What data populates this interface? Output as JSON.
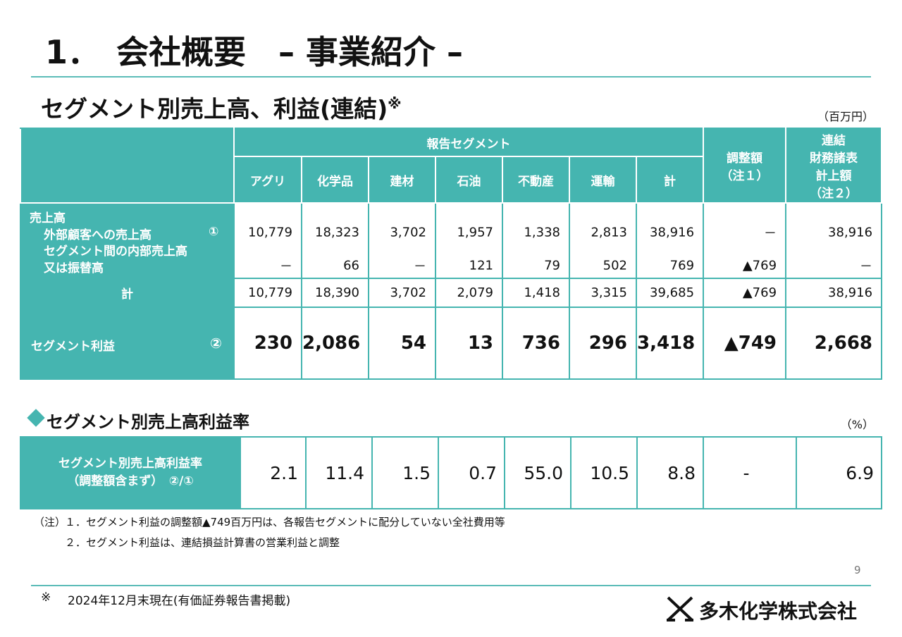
{
  "header": {
    "title": "1．　会社概要　– 事業紹介 –"
  },
  "section": {
    "title": "セグメント別売上高、利益(連結)",
    "mark": "※",
    "unit": "（百万円）"
  },
  "table": {
    "group_header": "報告セグメント",
    "segments": [
      "アグリ",
      "化学品",
      "建材",
      "石油",
      "不動産",
      "運輸",
      "計"
    ],
    "adjustment_header": [
      "調整額",
      "（注１）"
    ],
    "consolidated_header": [
      "連結",
      "財務諸表",
      "計上額",
      "（注２）"
    ],
    "sales": {
      "label": "売上高",
      "external": {
        "label": "外部顧客への売上高",
        "ref": "①",
        "values": [
          "10,779",
          "18,323",
          "3,702",
          "1,957",
          "1,338",
          "2,813",
          "38,916",
          "－",
          "38,916"
        ]
      },
      "internal": {
        "label": [
          "セグメント間の内部売上高",
          "又は振替高"
        ],
        "values": [
          "－",
          "66",
          "－",
          "121",
          "79",
          "502",
          "769",
          "▲769",
          "－"
        ]
      }
    },
    "total": {
      "label": "計",
      "values": [
        "10,779",
        "18,390",
        "3,702",
        "2,079",
        "1,418",
        "3,315",
        "39,685",
        "▲769",
        "38,916"
      ]
    },
    "profit": {
      "label": "セグメント利益",
      "ref": "②",
      "values": [
        "230",
        "2,086",
        "54",
        "13",
        "736",
        "296",
        "3,418",
        "▲749",
        "2,668"
      ]
    }
  },
  "rate": {
    "title": "セグメント別売上高利益率",
    "unit": "（%）",
    "label": [
      "セグメント別売上高利益率",
      "（調整額含まず）　②/①"
    ],
    "values": [
      "2.1",
      "11.4",
      "1.5",
      "0.7",
      "55.0",
      "10.5",
      "8.8",
      "-",
      "6.9"
    ]
  },
  "notes": {
    "prefix": "（注）",
    "items": [
      "１．セグメント利益の調整額▲749百万円は、各報告セグメントに配分していない全社費用等",
      "２．セグメント利益は、連結損益計算書の営業利益と調整"
    ]
  },
  "page_number": "9",
  "footer": {
    "mark": "※",
    "text": "2024年12月末現在(有価証券報告書掲載)"
  },
  "logo": "多木化学株式会社"
}
